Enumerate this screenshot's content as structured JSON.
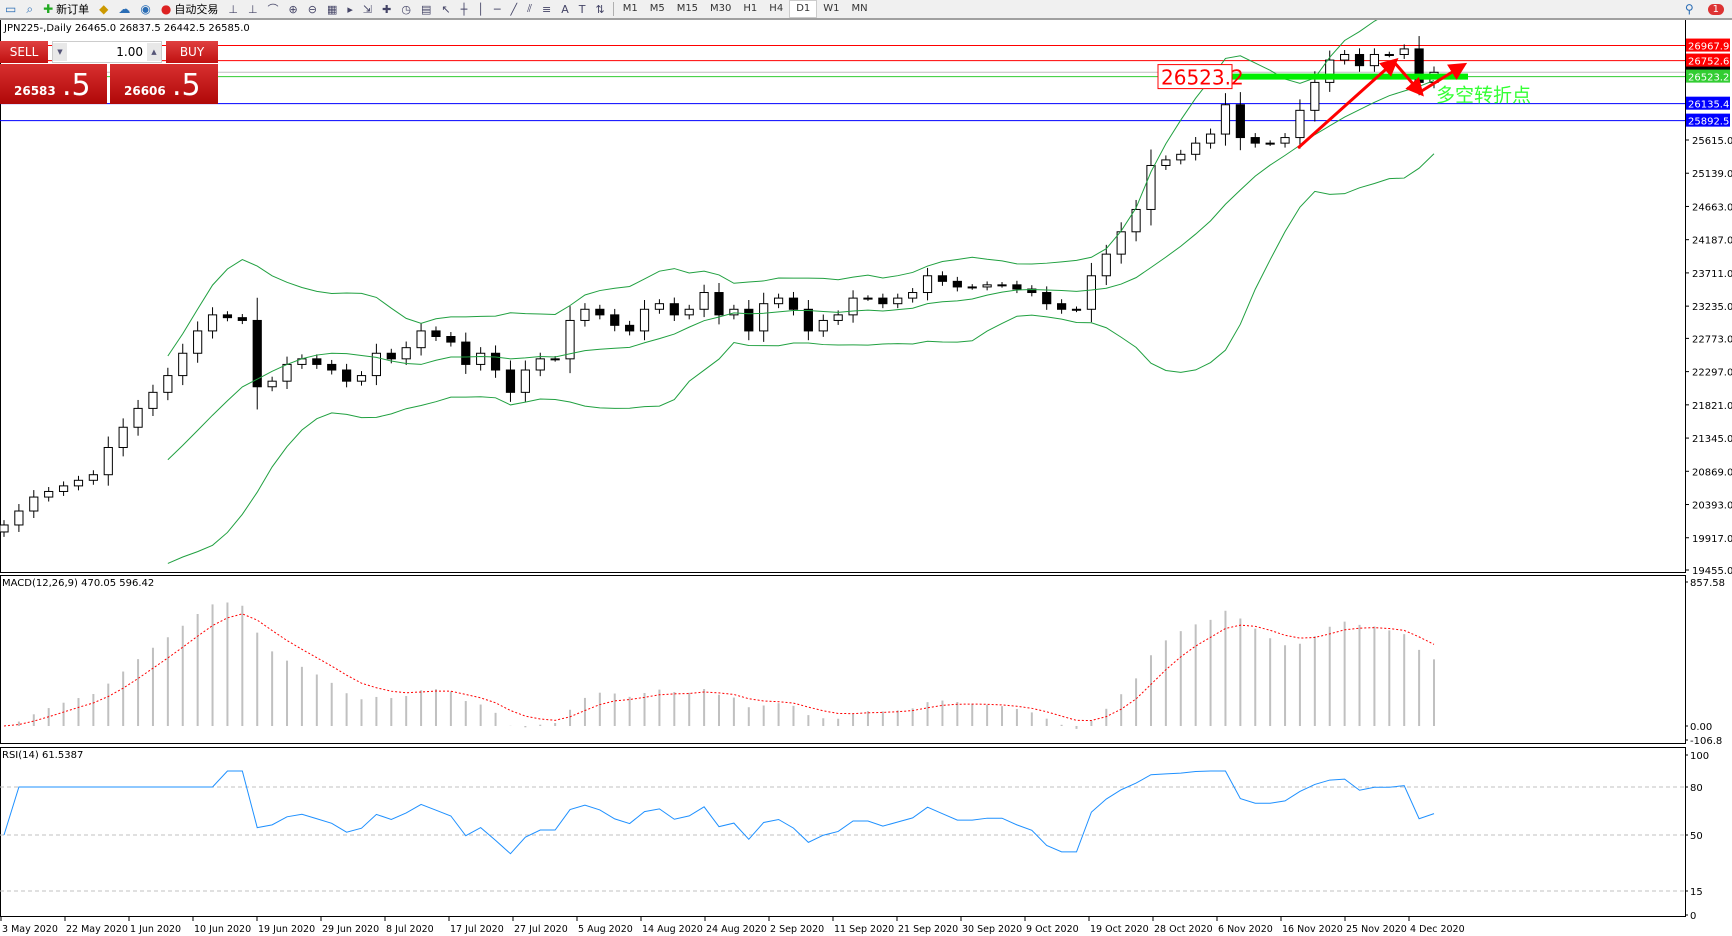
{
  "toolbar": {
    "items": [
      {
        "icon": "new-chart-icon",
        "label": ""
      },
      {
        "icon": "zoom-icon",
        "label": ""
      },
      {
        "icon": "new-order-icon",
        "label": "新订单"
      },
      {
        "icon": "gold-icon",
        "label": ""
      },
      {
        "icon": "server-icon",
        "label": ""
      },
      {
        "icon": "signal-icon",
        "label": ""
      },
      {
        "icon": "auto-trading-icon",
        "label": "自动交易"
      }
    ],
    "timeframes": [
      "M1",
      "M5",
      "M15",
      "M30",
      "H1",
      "H4",
      "D1",
      "W1",
      "MN"
    ],
    "selected_timeframe": "D1",
    "notification_count": "1"
  },
  "chart": {
    "title": "JPN225-,Daily  26465.0 26837.5 26442.5 26585.0",
    "price_ticks": [
      "25615.0",
      "25139.0",
      "24663.0",
      "24187.0",
      "23711.0",
      "23235.0",
      "22773.0",
      "22297.0",
      "21821.0",
      "21345.0",
      "20869.0",
      "20393.0",
      "19917.0",
      "19455.0"
    ],
    "levels": [
      {
        "value": 26967.9,
        "label": "26967.9",
        "color": "#ff0000"
      },
      {
        "value": 26752.6,
        "label": "26752.6",
        "color": "#ff0000"
      },
      {
        "value": 26523.2,
        "label": "26523.2",
        "color": "#32cd32"
      },
      {
        "value": 26135.4,
        "label": "26135.4",
        "color": "#0000ff"
      },
      {
        "value": 25892.5,
        "label": "25892.5",
        "color": "#0000ff"
      }
    ],
    "bid_line": 26585.0,
    "annotation_price": "26523.2",
    "annotation_text": "多空转折点",
    "annotation_color": "#33ff33",
    "band_color": "#20a040",
    "dates": [
      "3 May 2020",
      "22 May 2020",
      "1 Jun 2020",
      "10 Jun 2020",
      "19 Jun 2020",
      "29 Jun 2020",
      "8 Jul 2020",
      "17 Jul 2020",
      "27 Jul 2020",
      "5 Aug 2020",
      "14 Aug 2020",
      "24 Aug 2020",
      "2 Sep 2020",
      "11 Sep 2020",
      "21 Sep 2020",
      "30 Sep 2020",
      "9 Oct 2020",
      "19 Oct 2020",
      "28 Oct 2020",
      "6 Nov 2020",
      "16 Nov 2020",
      "25 Nov 2020",
      "4 Dec 2020"
    ]
  },
  "macd": {
    "label": "MACD(12,26,9) 470.05 596.42",
    "ticks": [
      "857.58",
      "0.00",
      "-106.8"
    ],
    "ylim": [
      -106.8,
      857.58
    ]
  },
  "rsi": {
    "label": "RSI(14) 61.5387",
    "ticks": [
      "100",
      "80",
      "50",
      "15",
      "0"
    ],
    "levels": [
      80,
      50,
      15
    ]
  },
  "trade": {
    "sell_label": "SELL",
    "buy_label": "BUY",
    "lots": "1.00",
    "sell_big": "26583",
    "sell_small": ".5",
    "buy_big": "26606",
    "buy_small": ".5"
  },
  "chart_data": {
    "type": "candlestick",
    "symbol": "JPN225-",
    "timeframe": "Daily",
    "ylim": [
      19455,
      27100
    ],
    "closes": [
      20100,
      20300,
      20500,
      20580,
      20660,
      20740,
      20820,
      21210,
      21500,
      21770,
      22000,
      22240,
      22560,
      22880,
      23110,
      23070,
      23030,
      22080,
      22160,
      22400,
      22480,
      22400,
      22320,
      22160,
      22240,
      22560,
      22480,
      22640,
      22880,
      22800,
      22720,
      22400,
      22560,
      22320,
      22000,
      22320,
      22480,
      22480,
      23030,
      23190,
      23110,
      22960,
      22880,
      23190,
      23270,
      23110,
      23190,
      23430,
      23110,
      23190,
      22880,
      23270,
      23350,
      23190,
      22880,
      23030,
      23110,
      23350,
      23350,
      23270,
      23350,
      23430,
      23670,
      23590,
      23510,
      23510,
      23540,
      23540,
      23480,
      23430,
      23270,
      23190,
      23190,
      23670,
      23980,
      24300,
      24620,
      25250,
      25330,
      25410,
      25570,
      25700,
      26120,
      25650,
      25570,
      25570,
      25650,
      26040,
      26440,
      26760,
      26840,
      26680,
      26840,
      26840,
      26920,
      26440,
      26585
    ]
  }
}
